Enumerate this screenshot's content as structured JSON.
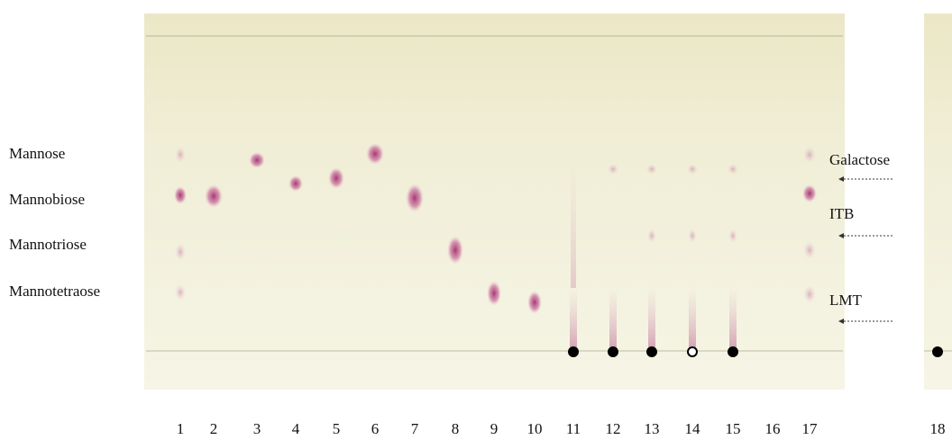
{
  "left_labels": [
    "Mannose",
    "Mannobiose",
    "Mannotriose",
    "Mannotetraose"
  ],
  "right_labels": [
    "Galactose",
    "ITB",
    "LMT"
  ],
  "lanes": [
    "1",
    "2",
    "3",
    "4",
    "5",
    "6",
    "7",
    "8",
    "9",
    "10",
    "11",
    "12",
    "13",
    "14",
    "15",
    "16",
    "17",
    "18"
  ]
}
